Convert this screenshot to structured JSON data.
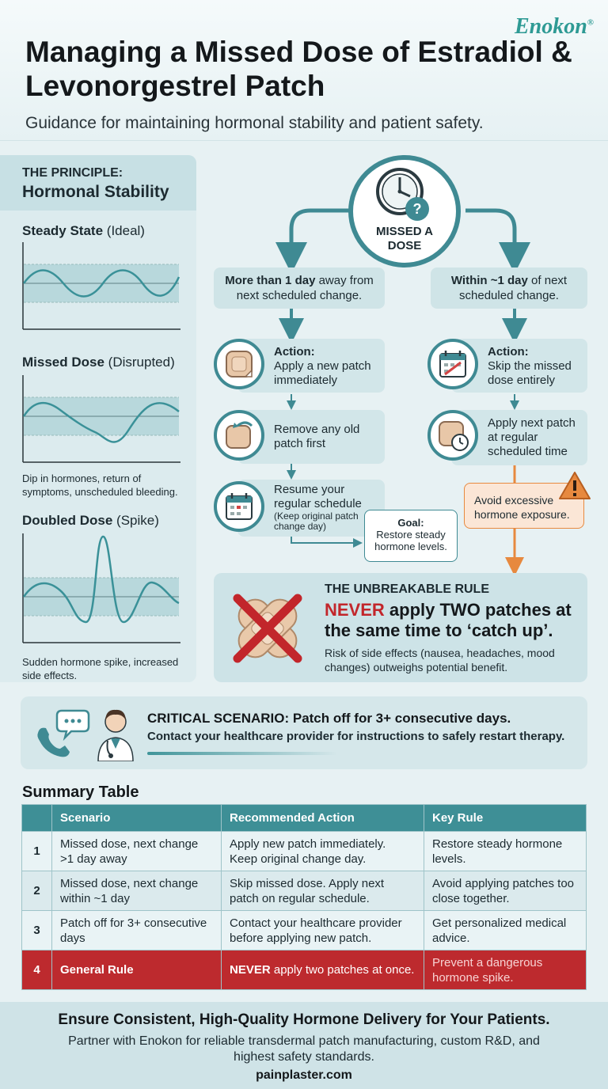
{
  "brand": {
    "name": "Enokon",
    "mark": "®"
  },
  "header": {
    "title": "Managing a Missed Dose of Estradiol & Levonorgestrel Patch",
    "subtitle": "Guidance for maintaining hormonal stability and patient safety."
  },
  "principle": {
    "kicker": "THE PRINCIPLE:",
    "title": "Hormonal Stability",
    "charts": [
      {
        "name": "Steady State",
        "qualifier": "(Ideal)",
        "caption": ""
      },
      {
        "name": "Missed Dose",
        "qualifier": "(Disrupted)",
        "caption": "Dip in hormones, return of symptoms, unscheduled bleeding."
      },
      {
        "name": "Doubled Dose",
        "qualifier": "(Spike)",
        "caption": "Sudden hormone spike, increased side effects."
      }
    ]
  },
  "flow": {
    "center_label": "MISSED A DOSE",
    "left": {
      "bold": "More than 1 day",
      "rest": "away from next scheduled change.",
      "step1": {
        "bold": "Action:",
        "text": "Apply a new patch immediately"
      },
      "step2": {
        "text": "Remove any old patch first"
      },
      "step3": {
        "text": "Resume your regular schedule",
        "note": "(Keep original patch change day)"
      },
      "goal": {
        "bold": "Goal:",
        "text": "Restore steady hormone levels."
      }
    },
    "right": {
      "bold": "Within ~1 day",
      "rest": "of next scheduled change.",
      "step1": {
        "bold": "Action:",
        "text": "Skip the missed dose entirely"
      },
      "step2": {
        "text": "Apply next patch at regular scheduled time"
      },
      "warning": "Avoid excessive hormone exposure."
    }
  },
  "rule": {
    "kicker": "THE UNBREAKABLE RULE",
    "never": "NEVER",
    "main": "apply TWO patches at the same time to ‘catch up’.",
    "note": "Risk of side effects (nausea, headaches, mood changes) outweighs potential benefit."
  },
  "critical": {
    "title": "CRITICAL SCENARIO: Patch off for 3+ consecutive days.",
    "text": "Contact your healthcare provider for instructions to safely restart therapy."
  },
  "summary": {
    "title": "Summary Table",
    "headers": [
      "",
      "Scenario",
      "Recommended Action",
      "Key Rule"
    ],
    "rows": [
      {
        "num": "1",
        "scenario": "Missed dose, next change >1 day away",
        "action": "Apply new patch immediately. Keep original change day.",
        "rule": "Restore steady hormone levels."
      },
      {
        "num": "2",
        "scenario": "Missed dose, next change within ~1 day",
        "action": "Skip missed dose. Apply next patch on regular schedule.",
        "rule": "Avoid applying patches too close together."
      },
      {
        "num": "3",
        "scenario": "Patch off for 3+ consecutive days",
        "action": "Contact your healthcare provider before applying new patch.",
        "rule": "Get personalized medical advice."
      },
      {
        "num": "4",
        "scenario": "General Rule",
        "action_bold": "NEVER",
        "action": "apply two patches at once.",
        "rule": "Prevent a dangerous hormone spike."
      }
    ]
  },
  "footer": {
    "headline": "Ensure Consistent, High-Quality Hormone Delivery for Your Patients.",
    "text": "Partner with Enokon for reliable transdermal patch manufacturing, custom R&D, and highest safety standards.",
    "url": "painplaster.com"
  },
  "colors": {
    "teal": "#3f8a93",
    "accent": "#2e9a94",
    "danger": "#c2262b",
    "warning": "#e7893f"
  }
}
